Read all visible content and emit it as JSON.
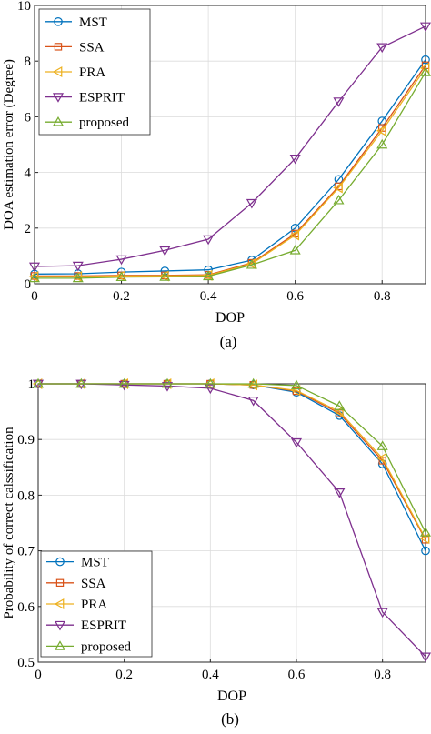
{
  "colors": {
    "MST": "#0072BD",
    "SSA": "#D95319",
    "PRA": "#EDB120",
    "ESPRIT": "#7E2F8E",
    "proposed": "#77AC30"
  },
  "chart_data": [
    {
      "type": "line",
      "caption": "(a)",
      "xlabel": "DOP",
      "ylabel": "DOA estimation error (Degree)",
      "xlim": [
        0,
        0.9
      ],
      "ylim": [
        0,
        10
      ],
      "xticks": [
        0,
        0.2,
        0.4,
        0.6,
        0.8
      ],
      "xtick_labels": [
        "0",
        "0.2",
        "0.4",
        "0.6",
        "0.8"
      ],
      "yticks": [
        0,
        2,
        4,
        6,
        8,
        10
      ],
      "ytick_labels": [
        "0",
        "2",
        "4",
        "6",
        "8",
        "10"
      ],
      "grid": true,
      "legend_position": "top-left",
      "x": [
        0,
        0.1,
        0.2,
        0.3,
        0.4,
        0.5,
        0.6,
        0.7,
        0.8,
        0.9
      ],
      "series": [
        {
          "name": "MST",
          "marker": "circle",
          "values": [
            0.35,
            0.36,
            0.42,
            0.46,
            0.5,
            0.85,
            2.0,
            3.75,
            5.85,
            8.05
          ]
        },
        {
          "name": "SSA",
          "marker": "square",
          "values": [
            0.28,
            0.28,
            0.3,
            0.3,
            0.32,
            0.75,
            1.8,
            3.5,
            5.6,
            7.85
          ]
        },
        {
          "name": "PRA",
          "marker": "triangle-left",
          "values": [
            0.26,
            0.26,
            0.28,
            0.28,
            0.3,
            0.72,
            1.75,
            3.45,
            5.5,
            7.75
          ]
        },
        {
          "name": "ESPRIT",
          "marker": "triangle-down",
          "values": [
            0.62,
            0.65,
            0.88,
            1.2,
            1.6,
            2.9,
            4.5,
            6.55,
            8.5,
            9.25
          ]
        },
        {
          "name": "proposed",
          "marker": "triangle-up",
          "values": [
            0.2,
            0.2,
            0.24,
            0.25,
            0.27,
            0.68,
            1.2,
            3.0,
            5.0,
            7.6
          ]
        }
      ]
    },
    {
      "type": "line",
      "caption": "(b)",
      "xlabel": "DOP",
      "ylabel": "Probability of correct calssification",
      "xlim": [
        0,
        0.9
      ],
      "ylim": [
        0.5,
        1
      ],
      "xticks": [
        0,
        0.2,
        0.4,
        0.6,
        0.8
      ],
      "xtick_labels": [
        "0",
        "0.2",
        "0.4",
        "0.6",
        "0.8"
      ],
      "yticks": [
        0.5,
        0.6,
        0.7,
        0.8,
        0.9,
        1.0
      ],
      "ytick_labels": [
        "0.5",
        "0.6",
        "0.7",
        "0.8",
        "0.9",
        "1"
      ],
      "grid": true,
      "legend_position": "bottom-left",
      "x": [
        0,
        0.1,
        0.2,
        0.3,
        0.4,
        0.5,
        0.6,
        0.7,
        0.8,
        0.9
      ],
      "series": [
        {
          "name": "MST",
          "marker": "circle",
          "values": [
            1.0,
            1.0,
            1.0,
            1.0,
            1.0,
            0.998,
            0.985,
            0.943,
            0.856,
            0.7
          ]
        },
        {
          "name": "SSA",
          "marker": "square",
          "values": [
            1.0,
            1.0,
            1.0,
            1.0,
            1.0,
            0.998,
            0.987,
            0.947,
            0.862,
            0.72
          ]
        },
        {
          "name": "PRA",
          "marker": "triangle-left",
          "values": [
            1.0,
            1.0,
            1.0,
            1.0,
            1.0,
            0.998,
            0.988,
            0.95,
            0.866,
            0.722
          ]
        },
        {
          "name": "ESPRIT",
          "marker": "triangle-down",
          "values": [
            1.0,
            1.0,
            0.998,
            0.996,
            0.992,
            0.97,
            0.895,
            0.805,
            0.59,
            0.51
          ]
        },
        {
          "name": "proposed",
          "marker": "triangle-up",
          "values": [
            1.0,
            1.0,
            1.0,
            1.0,
            1.0,
            1.0,
            0.997,
            0.96,
            0.888,
            0.733
          ]
        }
      ]
    }
  ]
}
